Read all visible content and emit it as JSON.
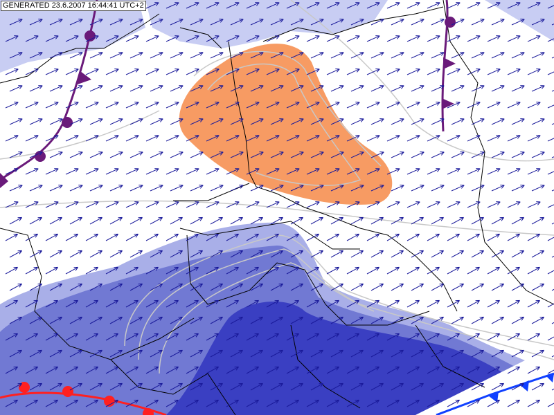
{
  "header": {
    "generated": "GENERATED 23.6.2007 16:44:41 UTC+2"
  }
}
